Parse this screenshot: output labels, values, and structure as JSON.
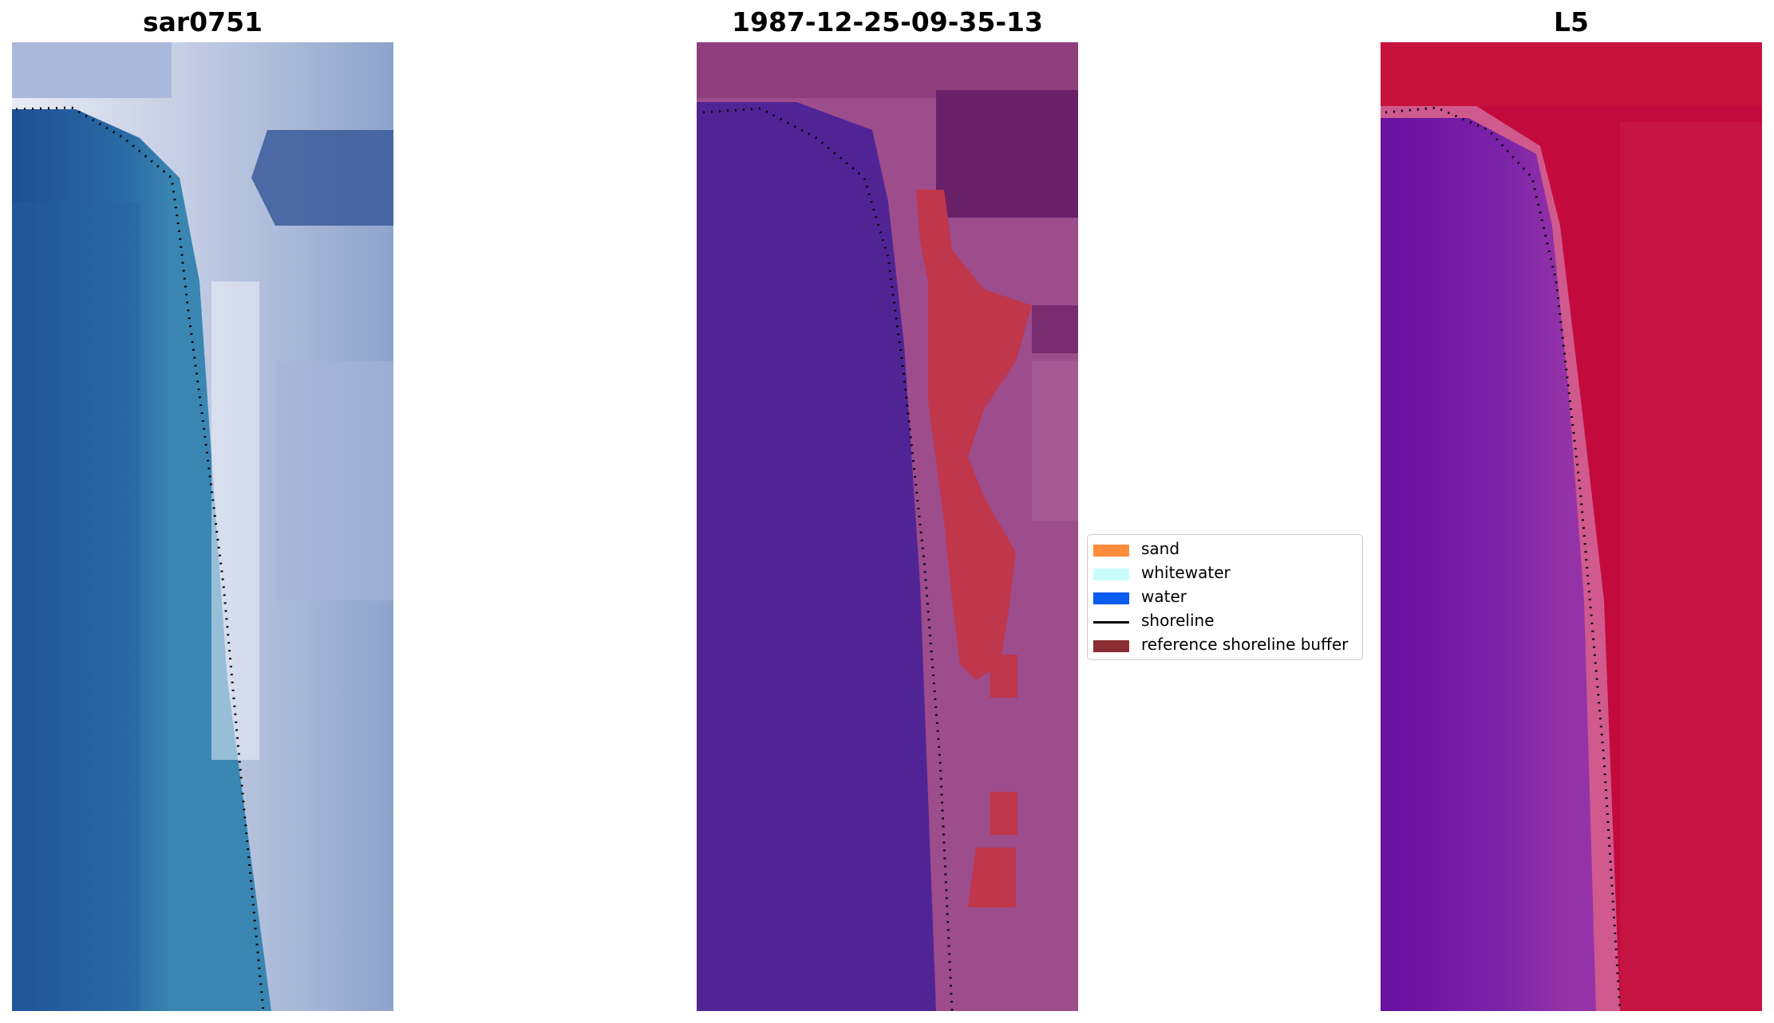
{
  "panels": [
    {
      "title": "sar0751",
      "content": "satellite-rgb-image"
    },
    {
      "title": "1987-12-25-09-35-13",
      "content": "classified-image"
    },
    {
      "title": "L5",
      "content": "water-index-image"
    }
  ],
  "legend": [
    {
      "label": "sand",
      "color": "#ff8c3a",
      "kind": "patch"
    },
    {
      "label": "whitewater",
      "color": "#c8fcfc",
      "kind": "patch"
    },
    {
      "label": "water",
      "color": "#0a5cf0",
      "kind": "patch"
    },
    {
      "label": "shoreline",
      "color": "#000000",
      "kind": "line"
    },
    {
      "label": "reference shoreline buffer",
      "color": "#8b2e33",
      "kind": "patch"
    }
  ],
  "colors": {
    "water_class": "#512496",
    "buffer_overlay": "#c0364a",
    "index_land": "#c30a3c",
    "index_water": "#6a14a0"
  }
}
